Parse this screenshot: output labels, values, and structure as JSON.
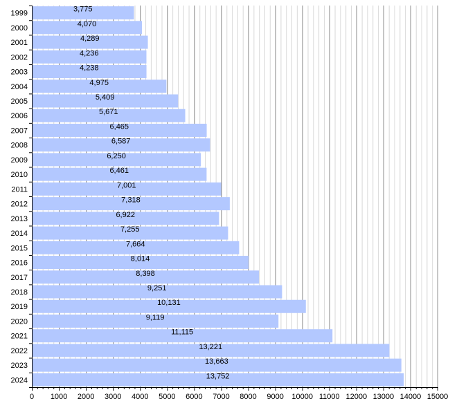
{
  "chart_data": {
    "type": "bar",
    "orientation": "horizontal",
    "title": "",
    "xlabel": "",
    "ylabel": "",
    "categories": [
      "1999",
      "2000",
      "2001",
      "2002",
      "2003",
      "2004",
      "2005",
      "2006",
      "2007",
      "2008",
      "2009",
      "2010",
      "2011",
      "2012",
      "2013",
      "2014",
      "2015",
      "2016",
      "2017",
      "2018",
      "2019",
      "2020",
      "2021",
      "2022",
      "2023",
      "2024"
    ],
    "values": [
      3775,
      4070,
      4289,
      4236,
      4238,
      4975,
      5409,
      5671,
      6465,
      6587,
      6250,
      6461,
      7001,
      7318,
      6922,
      7255,
      7664,
      8014,
      8398,
      9251,
      10131,
      9119,
      11115,
      13221,
      13663,
      13752
    ],
    "data_labels": [
      "3,775",
      "4,070",
      "4,289",
      "4,236",
      "4,238",
      "4,975",
      "5,409",
      "5,671",
      "6,465",
      "6,587",
      "6,250",
      "6,461",
      "7,001",
      "7,318",
      "6,922",
      "7,255",
      "7,664",
      "8,014",
      "8,398",
      "9,251",
      "10,131",
      "9,119",
      "11,115",
      "13,221",
      "13,663",
      "13,752"
    ],
    "xlim": [
      0,
      15000
    ],
    "x_ticks": [
      "0",
      "1000",
      "2000",
      "3000",
      "4000",
      "5000",
      "6000",
      "7000",
      "8000",
      "9000",
      "10000",
      "11000",
      "12000",
      "13000",
      "14000",
      "15000"
    ],
    "minor_grid_step": 200,
    "grid": true,
    "legend": "none",
    "colors": {
      "bar": "#b3c8ff",
      "major_grid": "#808080",
      "minor_grid": "#d8d8d8",
      "axis": "#000000"
    }
  }
}
